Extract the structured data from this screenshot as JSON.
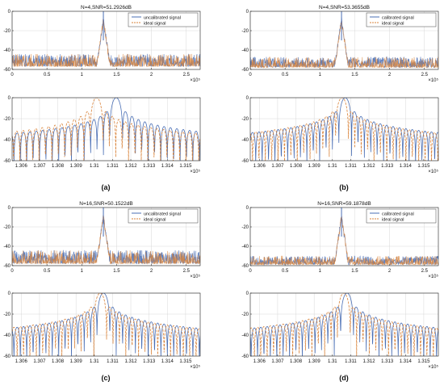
{
  "figure": {
    "colors": {
      "blue": "#4a6fb5",
      "orange": "#d9833a",
      "axis": "#222222",
      "grid": "#d8d8d8"
    }
  },
  "chart_data": [
    {
      "id": "a-top",
      "panel": "a",
      "kind": "spectrum",
      "type": "line",
      "title": "N=4,SNR=51.2926dB",
      "legend": [
        "uncalibrated signal",
        "ideal signal"
      ],
      "legend_position": "top-right",
      "xlim": [
        0,
        270000
      ],
      "ylim": [
        -60,
        0
      ],
      "xticks": [
        "0",
        "0.5",
        "1",
        "1.5",
        "2",
        "2.5"
      ],
      "xtick_values": [
        0,
        50000,
        100000,
        150000,
        200000,
        250000
      ],
      "yticks": [
        "0",
        "-20",
        "-40",
        "-60"
      ],
      "ytick_values": [
        0,
        -20,
        -40,
        -60
      ],
      "x_exponent": "×10⁵",
      "peak_x": 131000,
      "noise_floor_db": [
        -57,
        -44
      ],
      "grid": true
    },
    {
      "id": "a-bottom",
      "panel": "a",
      "kind": "zoom",
      "type": "line",
      "xlim": [
        130550,
        131580
      ],
      "ylim": [
        -60,
        0
      ],
      "xticks": [
        "1.306",
        "1.307",
        "1.308",
        "1.309",
        "1.31",
        "1.311",
        "1.312",
        "1.313",
        "1.314",
        "1.315"
      ],
      "xtick_values": [
        130600,
        130700,
        130800,
        130900,
        131000,
        131100,
        131200,
        131300,
        131400,
        131500
      ],
      "yticks": [
        "0",
        "-20",
        "-40",
        "-60"
      ],
      "ytick_values": [
        0,
        -20,
        -40,
        -60
      ],
      "x_exponent": "×10⁵",
      "series_peaks_x": [
        131120,
        131030
      ],
      "sidelobe_spacing": 35,
      "grid": true
    },
    {
      "id": "b-top",
      "panel": "b",
      "kind": "spectrum",
      "type": "line",
      "title": "N=4,SNR=53.3655dB",
      "legend": [
        "calibrated signal",
        "ideal signal"
      ],
      "legend_position": "top-right",
      "xlim": [
        0,
        270000
      ],
      "ylim": [
        -60,
        0
      ],
      "xticks": [
        "0",
        "0.5",
        "1",
        "1.5",
        "2",
        "2.5"
      ],
      "xtick_values": [
        0,
        50000,
        100000,
        150000,
        200000,
        250000
      ],
      "yticks": [
        "0",
        "-20",
        "-40",
        "-60"
      ],
      "ytick_values": [
        0,
        -20,
        -40,
        -60
      ],
      "x_exponent": "×10⁵",
      "peak_x": 131000,
      "noise_floor_db": [
        -58,
        -47
      ],
      "grid": true
    },
    {
      "id": "b-bottom",
      "panel": "b",
      "kind": "zoom",
      "type": "line",
      "xlim": [
        130550,
        131580
      ],
      "ylim": [
        -60,
        0
      ],
      "xticks": [
        "1.306",
        "1.307",
        "1.308",
        "1.309",
        "1.31",
        "1.311",
        "1.312",
        "1.313",
        "1.314",
        "1.315"
      ],
      "xtick_values": [
        130600,
        130700,
        130800,
        130900,
        131000,
        131100,
        131200,
        131300,
        131400,
        131500
      ],
      "yticks": [
        "0",
        "-20",
        "-40",
        "-60"
      ],
      "ytick_values": [
        0,
        -20,
        -40,
        -60
      ],
      "x_exponent": "×10⁵",
      "series_peaks_x": [
        131070,
        131070
      ],
      "sidelobe_spacing": 35,
      "grid": true
    },
    {
      "id": "c-top",
      "panel": "c",
      "kind": "spectrum",
      "type": "line",
      "title": "N=16,SNR=50.1522dB",
      "legend": [
        "uncalibrated signal",
        "ideal signal"
      ],
      "legend_position": "top-right",
      "xlim": [
        0,
        270000
      ],
      "ylim": [
        -60,
        0
      ],
      "xticks": [
        "0",
        "0.5",
        "1",
        "1.5",
        "2",
        "2.5"
      ],
      "xtick_values": [
        0,
        50000,
        100000,
        150000,
        200000,
        250000
      ],
      "yticks": [
        "0",
        "-20",
        "-40",
        "-60"
      ],
      "ytick_values": [
        0,
        -20,
        -40,
        -60
      ],
      "x_exponent": "×10⁵",
      "peak_x": 131000,
      "noise_floor_db": [
        -58,
        -44
      ],
      "grid": true
    },
    {
      "id": "c-bottom",
      "panel": "c",
      "kind": "zoom",
      "type": "line",
      "xlim": [
        130550,
        131580
      ],
      "ylim": [
        -60,
        0
      ],
      "xticks": [
        "1.306",
        "1.307",
        "1.308",
        "1.309",
        "1.31",
        "1.311",
        "1.312",
        "1.313",
        "1.314",
        "1.315"
      ],
      "xtick_values": [
        130600,
        130700,
        130800,
        130900,
        131000,
        131100,
        131200,
        131300,
        131400,
        131500
      ],
      "yticks": [
        "0",
        "-20",
        "-40",
        "-60"
      ],
      "ytick_values": [
        0,
        -20,
        -40,
        -60
      ],
      "x_exponent": "×10⁵",
      "series_peaks_x": [
        131050,
        131050
      ],
      "sidelobe_spacing": 35,
      "grid": true
    },
    {
      "id": "d-top",
      "panel": "d",
      "kind": "spectrum",
      "type": "line",
      "title": "N=16,SNR=59.1878dB",
      "legend": [
        "calibrated signal",
        "ideal signal"
      ],
      "legend_position": "top-right",
      "xlim": [
        0,
        270000
      ],
      "ylim": [
        -60,
        0
      ],
      "xticks": [
        "0",
        "0.5",
        "1",
        "1.5",
        "2",
        "2.5"
      ],
      "xtick_values": [
        0,
        50000,
        100000,
        150000,
        200000,
        250000
      ],
      "yticks": [
        "0",
        "-20",
        "-40",
        "-60"
      ],
      "ytick_values": [
        0,
        -20,
        -40,
        -60
      ],
      "x_exponent": "×10⁵",
      "peak_x": 131000,
      "noise_floor_db": [
        -59,
        -50
      ],
      "grid": true
    },
    {
      "id": "d-bottom",
      "panel": "d",
      "kind": "zoom",
      "type": "line",
      "xlim": [
        130550,
        131580
      ],
      "ylim": [
        -60,
        0
      ],
      "xticks": [
        "1.306",
        "1.307",
        "1.308",
        "1.309",
        "1.31",
        "1.311",
        "1.312",
        "1.313",
        "1.314",
        "1.315"
      ],
      "xtick_values": [
        130600,
        130700,
        130800,
        130900,
        131000,
        131100,
        131200,
        131300,
        131400,
        131500
      ],
      "yticks": [
        "0",
        "-20",
        "-40",
        "-60"
      ],
      "ytick_values": [
        0,
        -20,
        -40,
        -60
      ],
      "x_exponent": "×10⁵",
      "series_peaks_x": [
        131080,
        131080
      ],
      "sidelobe_spacing": 35,
      "grid": true
    }
  ],
  "captions": {
    "a": "(a)",
    "b": "(b)",
    "c": "(c)",
    "d": "(d)"
  }
}
